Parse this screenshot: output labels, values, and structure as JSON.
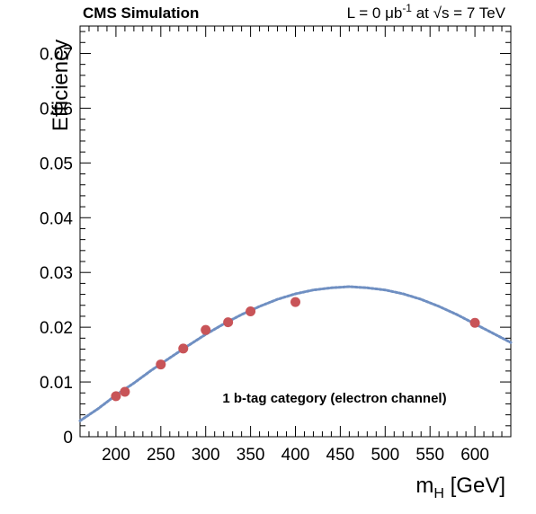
{
  "chart_data": {
    "type": "scatter",
    "title_left": "CMS Simulation",
    "title_right": {
      "lumi_prefix": "L = 0 ",
      "lumi_unit": "μb",
      "lumi_exp": "-1",
      "lumi_suffix": " at ",
      "energy_sym": "√s",
      "energy_suffix": " = 7 TeV"
    },
    "xlabel": {
      "main": "m",
      "sub": "H",
      "unit": " [GeV]"
    },
    "ylabel": "Efficiency",
    "annotation": "1 b-tag category (electron channel)",
    "xlim": [
      160,
      640
    ],
    "ylim": [
      0,
      0.075
    ],
    "x_ticks": [
      {
        "value": 200,
        "label": "200"
      },
      {
        "value": 250,
        "label": "250"
      },
      {
        "value": 300,
        "label": "300"
      },
      {
        "value": 350,
        "label": "350"
      },
      {
        "value": 400,
        "label": "400"
      },
      {
        "value": 450,
        "label": "450"
      },
      {
        "value": 500,
        "label": "500"
      },
      {
        "value": 550,
        "label": "550"
      },
      {
        "value": 600,
        "label": "600"
      }
    ],
    "y_ticks": [
      {
        "value": 0,
        "label": "0"
      },
      {
        "value": 0.01,
        "label": "0.01"
      },
      {
        "value": 0.02,
        "label": "0.02"
      },
      {
        "value": 0.03,
        "label": "0.03"
      },
      {
        "value": 0.04,
        "label": "0.04"
      },
      {
        "value": 0.05,
        "label": "0.05"
      },
      {
        "value": 0.06,
        "label": "0.06"
      },
      {
        "value": 0.07,
        "label": "0.07"
      }
    ],
    "points": {
      "color": "#c85458",
      "x": [
        200,
        210,
        250,
        275,
        300,
        325,
        350,
        400,
        600
      ],
      "y": [
        0.0074,
        0.0082,
        0.0132,
        0.0161,
        0.0195,
        0.0209,
        0.0229,
        0.0246,
        0.0208
      ]
    },
    "fit_curve": {
      "color": "#6f8fc2",
      "style": "dotted",
      "x": [
        160,
        180,
        200,
        220,
        240,
        260,
        280,
        300,
        320,
        340,
        360,
        380,
        400,
        420,
        440,
        460,
        480,
        500,
        520,
        540,
        560,
        580,
        600,
        620,
        640
      ],
      "y": [
        0.0029,
        0.0051,
        0.0076,
        0.0098,
        0.0122,
        0.0144,
        0.0166,
        0.0187,
        0.0206,
        0.0223,
        0.0238,
        0.0251,
        0.0261,
        0.0268,
        0.0272,
        0.0274,
        0.0272,
        0.0268,
        0.0261,
        0.0251,
        0.0238,
        0.0223,
        0.0206,
        0.0189,
        0.0172
      ]
    }
  }
}
